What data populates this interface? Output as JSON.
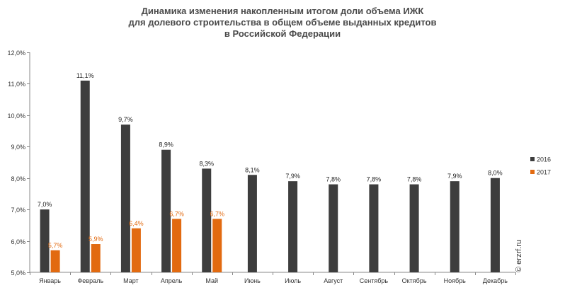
{
  "title_lines": [
    "Динамика изменения накопленным итогом доли объема ИЖК",
    "для долевого строительства в общем объеме выданных кредитов",
    "в Российской Федерации"
  ],
  "watermark": "© erzrf.ru",
  "colors": {
    "series_2016": "#3d3d3d",
    "series_2017": "#e26a10",
    "label_2016": "#222222",
    "label_2017": "#e26a10",
    "axis": "#888888",
    "grid": "#d9d9d9"
  },
  "chart_data": {
    "type": "bar",
    "categories": [
      "Январь",
      "Февраль",
      "Март",
      "Апрель",
      "Май",
      "Июнь",
      "Июль",
      "Август",
      "Сентябрь",
      "Октябрь",
      "Ноябрь",
      "Декабрь"
    ],
    "series": [
      {
        "name": "2016",
        "values": [
          7.0,
          11.1,
          9.7,
          8.9,
          8.3,
          8.1,
          7.9,
          7.8,
          7.8,
          7.8,
          7.9,
          8.0
        ],
        "labels": [
          "7,0%",
          "11,1%",
          "9,7%",
          "8,9%",
          "8,3%",
          "8,1%",
          "7,9%",
          "7,8%",
          "7,8%",
          "7,8%",
          "7,9%",
          "8,0%"
        ]
      },
      {
        "name": "2017",
        "values": [
          5.7,
          5.9,
          6.4,
          6.7,
          6.7,
          null,
          null,
          null,
          null,
          null,
          null,
          null
        ],
        "labels": [
          "5,7%",
          "5,9%",
          "6,4%",
          "6,7%",
          "6,7%",
          "",
          "",
          "",
          "",
          "",
          "",
          ""
        ]
      }
    ],
    "y_ticks": [
      5.0,
      6.0,
      7.0,
      8.0,
      9.0,
      10.0,
      11.0,
      12.0
    ],
    "y_tick_labels": [
      "5,0%",
      "6,0%",
      "7,0%",
      "8,0%",
      "9,0%",
      "10,0%",
      "11,0%",
      "12,0%"
    ],
    "ylim": [
      5.0,
      12.0
    ],
    "grid": false,
    "legend_position": "right"
  }
}
